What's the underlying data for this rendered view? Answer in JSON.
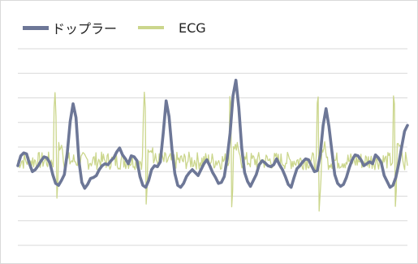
{
  "chart_data": {
    "type": "line",
    "title": "",
    "xlabel": "",
    "ylabel": "",
    "ylim": [
      0,
      10
    ],
    "grid": true,
    "legend": "top-left",
    "series": [
      {
        "name": "ドップラー",
        "color": "#6d7797",
        "values": [
          4.05,
          4.55,
          4.7,
          4.65,
          4.15,
          3.75,
          3.85,
          4.05,
          4.3,
          4.5,
          4.45,
          4.2,
          3.6,
          3.15,
          3.05,
          3.3,
          3.6,
          4.7,
          6.3,
          7.2,
          6.5,
          4.3,
          3.2,
          2.9,
          3.1,
          3.4,
          3.45,
          3.55,
          3.85,
          4.05,
          4.15,
          4.1,
          4.3,
          4.45,
          4.75,
          4.95,
          4.6,
          4.4,
          4.15,
          4.55,
          4.5,
          4.3,
          3.5,
          3.05,
          2.95,
          3.3,
          3.85,
          4.05,
          4.0,
          4.25,
          5.7,
          7.35,
          6.55,
          4.9,
          3.65,
          3.05,
          2.95,
          3.15,
          3.5,
          3.7,
          3.85,
          3.7,
          3.55,
          3.85,
          4.15,
          4.35,
          4.05,
          3.7,
          3.45,
          3.15,
          3.2,
          3.5,
          4.45,
          5.7,
          7.6,
          8.4,
          7.0,
          4.95,
          3.7,
          3.25,
          3.0,
          3.3,
          3.6,
          4.1,
          4.3,
          4.2,
          4.05,
          4.0,
          4.1,
          4.4,
          4.1,
          3.85,
          3.5,
          3.1,
          2.95,
          3.45,
          3.9,
          4.05,
          4.25,
          4.4,
          4.35,
          4.05,
          3.75,
          3.8,
          4.6,
          6.1,
          6.95,
          6.05,
          4.8,
          3.6,
          3.15,
          3.0,
          3.1,
          3.45,
          3.95,
          4.35,
          4.6,
          4.55,
          4.35,
          4.05,
          4.15,
          4.25,
          4.15,
          4.6,
          4.45,
          4.2,
          3.55,
          3.25,
          2.95,
          3.05,
          3.45,
          4.15,
          5.0,
          5.8,
          6.1
        ],
        "x_label": []
      },
      {
        "name": "ECG",
        "color": "#cbd68c",
        "values": []
      }
    ]
  }
}
